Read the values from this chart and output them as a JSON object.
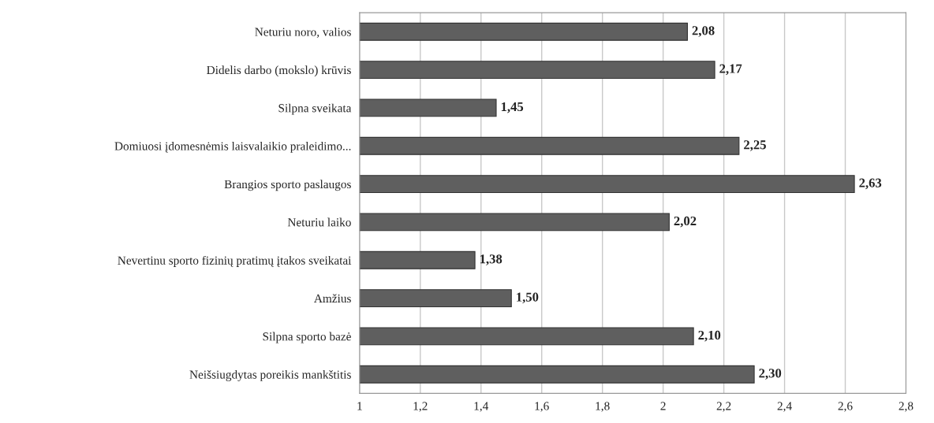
{
  "chart_data": {
    "type": "bar",
    "orientation": "horizontal",
    "categories": [
      "Neturiu noro, valios",
      "Didelis darbo (mokslo) krūvis",
      "Silpna sveikata",
      "Domiuosi įdomesnėmis laisvalaikio praleidimo...",
      "Brangios sporto paslaugos",
      "Neturiu laiko",
      "Nevertinu sporto fizinių pratimų įtakos sveikatai",
      "Amžius",
      "Silpna sporto bazė",
      "Neišsiugdytas poreikis mankštitis"
    ],
    "values": [
      2.08,
      2.17,
      1.45,
      2.25,
      2.63,
      2.02,
      1.38,
      1.5,
      2.1,
      2.3
    ],
    "value_labels": [
      "2,08",
      "2,17",
      "1,45",
      "2,25",
      "2,63",
      "2,02",
      "1,38",
      "1,50",
      "2,10",
      "2,30"
    ],
    "color": "#5f5f5f",
    "xlim": [
      1,
      2.8
    ],
    "xticks": [
      1,
      {
        "value": 1.2,
        "label": "1,2"
      },
      {
        "value": 1.4,
        "label": "1,4"
      },
      {
        "value": 1.6,
        "label": "1,6"
      },
      {
        "value": 1.8,
        "label": "1,8"
      },
      2,
      {
        "value": 2.2,
        "label": "2,2"
      },
      {
        "value": 2.4,
        "label": "2,4"
      },
      {
        "value": 2.6,
        "label": "2,6"
      },
      {
        "value": 2.8,
        "label": "2,8"
      }
    ],
    "grid": "x"
  }
}
